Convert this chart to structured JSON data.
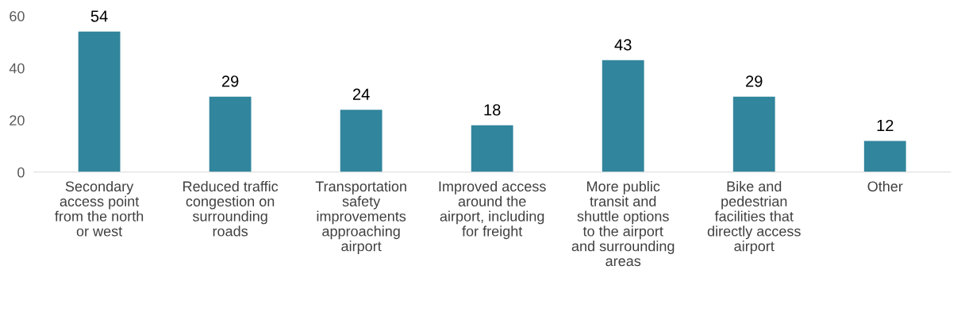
{
  "chart_data": {
    "type": "bar",
    "categories": [
      "Secondary\naccess point\nfrom the north\nor west",
      "Reduced traffic\ncongestion on\nsurrounding\nroads",
      "Transportation\nsafety\nimprovements\napproaching\nairport",
      "Improved access\naround the\nairport, including\nfor freight",
      "More public\ntransit and\nshuttle options\nto the airport\nand surrounding\nareas",
      "Bike and\npedestrian\nfacilities that\ndirectly access\nairport",
      "Other"
    ],
    "values": [
      54,
      29,
      24,
      18,
      43,
      29,
      12
    ],
    "color": "#31859c",
    "ylim": [
      0,
      60
    ],
    "yticks": [
      0,
      20,
      40,
      60
    ],
    "data_labels": true,
    "grid": false
  }
}
